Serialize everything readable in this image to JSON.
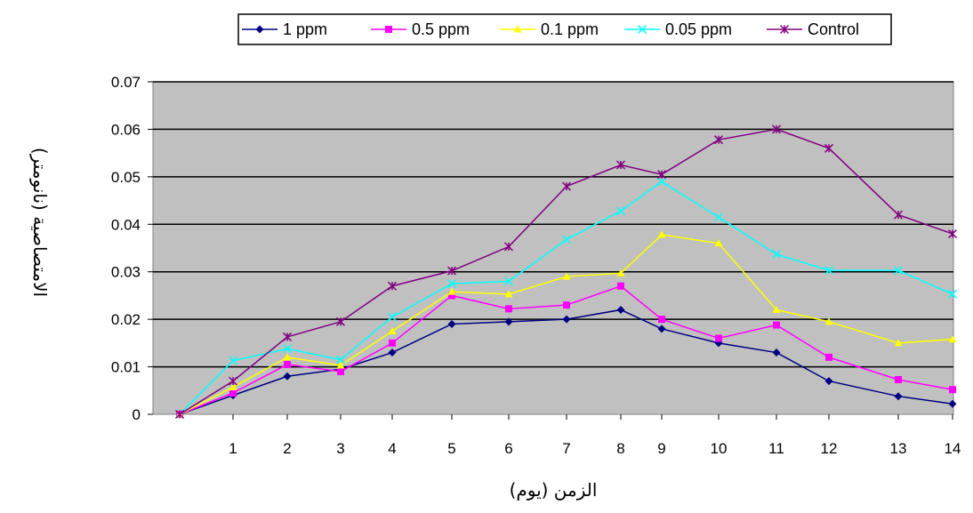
{
  "chart_data": {
    "type": "line",
    "xlabel": "الزمن (يوم)",
    "ylabel": "الامتصاصية (نانومتر)",
    "ylim": [
      0,
      0.07
    ],
    "yticks": [
      "0",
      "0.01",
      "0.02",
      "0.03",
      "0.04",
      "0.05",
      "0.06",
      "0.07"
    ],
    "xticks": [
      "1",
      "2",
      "3",
      "4",
      "5",
      "6",
      "7",
      "8",
      "9",
      "10",
      "11",
      "12",
      "13",
      "14"
    ],
    "x": [
      0,
      1,
      2,
      3,
      4,
      5,
      6,
      7,
      8,
      9,
      10,
      11,
      12,
      13,
      14
    ],
    "grid": "horizontal",
    "legend_position": "top",
    "plot_background": "#c0c0c0",
    "series": [
      {
        "name": "1 ppm",
        "color": "#000080",
        "marker": "diamond",
        "values": [
          0,
          0.004,
          0.008,
          0.0095,
          0.013,
          0.019,
          0.0195,
          0.02,
          0.022,
          0.018,
          0.015,
          0.013,
          0.007,
          0.0038,
          0.0022
        ]
      },
      {
        "name": "0.5 ppm",
        "color": "#ff00ff",
        "marker": "square",
        "values": [
          0,
          0.0045,
          0.0105,
          0.009,
          0.015,
          0.025,
          0.0222,
          0.023,
          0.027,
          0.02,
          0.016,
          0.0188,
          0.012,
          0.0073,
          0.0052
        ]
      },
      {
        "name": "0.1 ppm",
        "color": "#ffff00",
        "marker": "triangle",
        "values": [
          0,
          0.0057,
          0.012,
          0.0103,
          0.0175,
          0.0258,
          0.0253,
          0.029,
          0.0297,
          0.0378,
          0.036,
          0.022,
          0.0195,
          0.015,
          0.0158
        ]
      },
      {
        "name": "0.05 ppm",
        "color": "#00ffff",
        "marker": "x",
        "values": [
          0,
          0.0113,
          0.0138,
          0.0115,
          0.0205,
          0.0275,
          0.028,
          0.0368,
          0.0428,
          0.049,
          0.0415,
          0.0337,
          0.0303,
          0.0303,
          0.0253
        ]
      },
      {
        "name": "Control",
        "color": "#800080",
        "marker": "star",
        "values": [
          0,
          0.007,
          0.0163,
          0.0195,
          0.027,
          0.0302,
          0.0353,
          0.048,
          0.0525,
          0.0505,
          0.0578,
          0.06,
          0.056,
          0.042,
          0.038
        ]
      }
    ]
  }
}
